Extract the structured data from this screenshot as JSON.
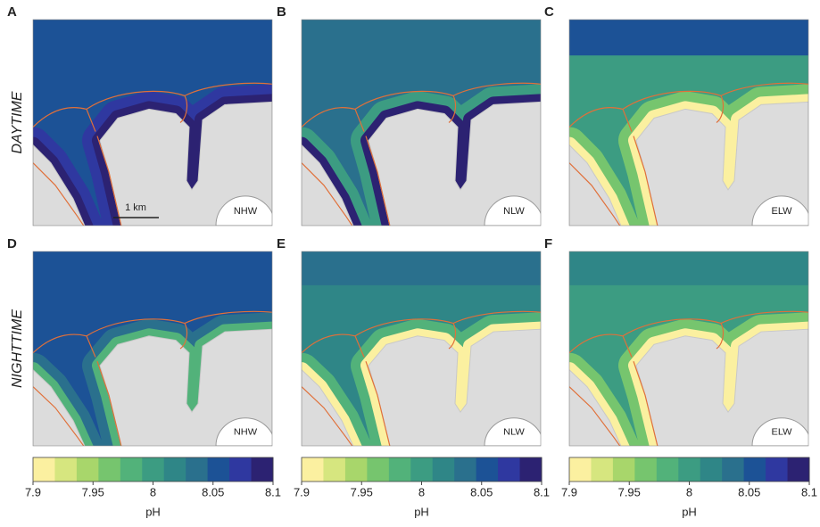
{
  "row_labels": [
    "DAYTIME",
    "NIGHTTIME"
  ],
  "panels": [
    {
      "label": "A",
      "wind": "NHW"
    },
    {
      "label": "B",
      "wind": "NLW"
    },
    {
      "label": "C",
      "wind": "ELW"
    },
    {
      "label": "D",
      "wind": "NHW"
    },
    {
      "label": "E",
      "wind": "NLW"
    },
    {
      "label": "F",
      "wind": "ELW"
    }
  ],
  "scale_bar": "1 km",
  "colorbar": {
    "label": "pH",
    "lim": [
      7.9,
      8.1
    ],
    "ticks": [
      7.9,
      7.95,
      8,
      8.05,
      8.1
    ],
    "colors": [
      "#fbf0a0",
      "#d6e67f",
      "#a8d66b",
      "#76c56e",
      "#52b27a",
      "#3c9c82",
      "#2f8687",
      "#2a708d",
      "#1c5296",
      "#2f38a0",
      "#2c2272"
    ]
  }
}
